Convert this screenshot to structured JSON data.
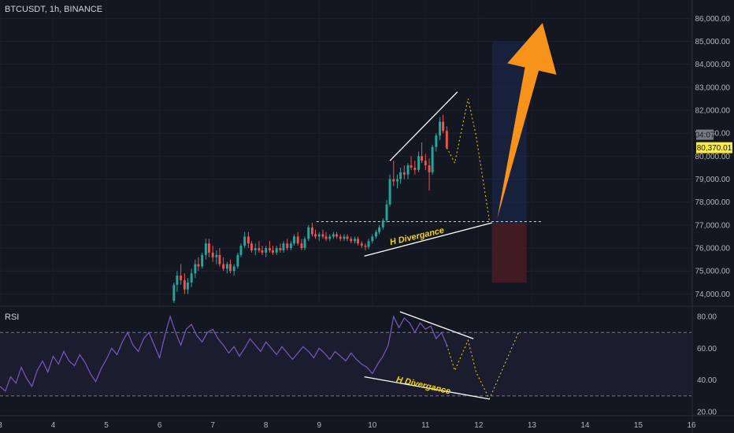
{
  "header": {
    "symbol_label": "BTCUSDT, 1h, BINANCE"
  },
  "rsi": {
    "label": "RSI",
    "upper_band": 70,
    "lower_band": 30
  },
  "price_tag": {
    "countdown": "04:07",
    "last_price": "80,370.01"
  },
  "colors": {
    "up": "#26a69a",
    "down": "#ef5350",
    "rsi_line": "#7e57c2",
    "arrow": "#f7931a",
    "annotation": "#f5d40f",
    "target_zone": "#1c2a52",
    "stop_zone": "#4a1c22"
  },
  "chart_data": [
    {
      "type": "candlestick",
      "panel": "price",
      "price_ticks": [
        "74,000.00",
        "75,000.00",
        "76,000.00",
        "77,000.00",
        "78,000.00",
        "79,000.00",
        "80,000.00",
        "81,000.00",
        "82,000.00",
        "83,000.00",
        "84,000.00",
        "85,000.00",
        "86,000.00"
      ],
      "ylim": [
        73500,
        86800
      ],
      "x_ticks": [
        "3",
        "4",
        "5",
        "6",
        "7",
        "8",
        "9",
        "10",
        "11",
        "12",
        "13",
        "14",
        "15",
        "16"
      ],
      "xlim": [
        3.0,
        16.0
      ],
      "candles": [
        [
          6.27,
          73700,
          74500,
          73600,
          74400
        ],
        [
          6.33,
          74400,
          75000,
          74100,
          74800
        ],
        [
          6.4,
          74800,
          75300,
          74400,
          74600
        ],
        [
          6.47,
          74600,
          74900,
          74000,
          74200
        ],
        [
          6.53,
          74200,
          74700,
          74000,
          74500
        ],
        [
          6.6,
          74500,
          75100,
          74300,
          74900
        ],
        [
          6.67,
          74900,
          75500,
          74700,
          75300
        ],
        [
          6.73,
          75300,
          75600,
          75000,
          75200
        ],
        [
          6.8,
          75200,
          75800,
          75100,
          75700
        ],
        [
          6.87,
          75700,
          76400,
          75500,
          76200
        ],
        [
          6.93,
          76200,
          76400,
          75600,
          75800
        ],
        [
          7.0,
          75800,
          76100,
          75400,
          75600
        ],
        [
          7.07,
          75600,
          75900,
          75300,
          75700
        ],
        [
          7.13,
          75700,
          76000,
          75200,
          75300
        ],
        [
          7.2,
          75300,
          75600,
          75000,
          75100
        ],
        [
          7.27,
          75100,
          75400,
          74900,
          75300
        ],
        [
          7.33,
          75300,
          75500,
          74900,
          75000
        ],
        [
          7.4,
          75000,
          75300,
          74800,
          75200
        ],
        [
          7.47,
          75200,
          75800,
          75100,
          75700
        ],
        [
          7.53,
          75700,
          76200,
          75600,
          76100
        ],
        [
          7.6,
          76100,
          76700,
          76000,
          76500
        ],
        [
          7.67,
          76500,
          76700,
          76000,
          76200
        ],
        [
          7.73,
          76200,
          76300,
          75800,
          75900
        ],
        [
          7.8,
          75900,
          76200,
          75700,
          76000
        ],
        [
          7.87,
          76000,
          76300,
          75800,
          75900
        ],
        [
          7.93,
          75900,
          76100,
          75700,
          75800
        ],
        [
          8.0,
          75800,
          76100,
          75600,
          76000
        ],
        [
          8.07,
          76000,
          76300,
          75800,
          75900
        ],
        [
          8.13,
          75900,
          76100,
          75700,
          75800
        ],
        [
          8.2,
          75800,
          76100,
          75700,
          76000
        ],
        [
          8.27,
          76000,
          76200,
          75800,
          75900
        ],
        [
          8.33,
          75900,
          76300,
          75800,
          76200
        ],
        [
          8.4,
          76200,
          76400,
          75900,
          76000
        ],
        [
          8.47,
          76000,
          76300,
          75900,
          76200
        ],
        [
          8.53,
          76200,
          76600,
          76100,
          76500
        ],
        [
          8.6,
          76500,
          76700,
          76100,
          76200
        ],
        [
          8.67,
          76200,
          76400,
          75900,
          76000
        ],
        [
          8.73,
          76000,
          76500,
          75900,
          76400
        ],
        [
          8.8,
          76400,
          77000,
          76300,
          76900
        ],
        [
          8.87,
          76900,
          77100,
          76500,
          76600
        ],
        [
          8.93,
          76600,
          76800,
          76400,
          76500
        ],
        [
          9.0,
          76500,
          76700,
          76300,
          76600
        ],
        [
          9.07,
          76600,
          76800,
          76400,
          76500
        ],
        [
          9.13,
          76500,
          76700,
          76300,
          76400
        ],
        [
          9.2,
          76400,
          76600,
          76300,
          76500
        ],
        [
          9.27,
          76500,
          76700,
          76400,
          76600
        ],
        [
          9.33,
          76600,
          76700,
          76400,
          76500
        ],
        [
          9.4,
          76500,
          76600,
          76300,
          76400
        ],
        [
          9.47,
          76400,
          76600,
          76300,
          76500
        ],
        [
          9.53,
          76500,
          76600,
          76300,
          76400
        ],
        [
          9.6,
          76400,
          76500,
          76200,
          76300
        ],
        [
          9.67,
          76300,
          76500,
          76200,
          76400
        ],
        [
          9.73,
          76400,
          76500,
          76100,
          76200
        ],
        [
          9.8,
          76200,
          76300,
          76000,
          76100
        ],
        [
          9.87,
          76100,
          76200,
          75900,
          76050
        ],
        [
          9.93,
          76050,
          76400,
          75950,
          76300
        ],
        [
          10.0,
          76300,
          76600,
          76200,
          76500
        ],
        [
          10.07,
          76500,
          76800,
          76400,
          76700
        ],
        [
          10.13,
          76700,
          77000,
          76600,
          76900
        ],
        [
          10.2,
          76900,
          77300,
          76800,
          77200
        ],
        [
          10.27,
          77200,
          78100,
          77100,
          77900
        ],
        [
          10.33,
          77900,
          79200,
          77800,
          79000
        ],
        [
          10.4,
          79000,
          79800,
          78700,
          78900
        ],
        [
          10.47,
          78900,
          79200,
          78600,
          79000
        ],
        [
          10.53,
          79000,
          79500,
          78800,
          79300
        ],
        [
          10.6,
          79300,
          79600,
          79000,
          79200
        ],
        [
          10.67,
          79200,
          79700,
          79000,
          79600
        ],
        [
          10.73,
          79600,
          80000,
          79400,
          79500
        ],
        [
          10.8,
          79500,
          79800,
          79200,
          79400
        ],
        [
          10.87,
          79400,
          80200,
          79300,
          80000
        ],
        [
          10.93,
          80000,
          80600,
          79700,
          79800
        ],
        [
          11.0,
          79800,
          80100,
          79400,
          79600
        ],
        [
          11.07,
          79600,
          79900,
          78500,
          79300
        ],
        [
          11.13,
          79300,
          80500,
          79200,
          80400
        ],
        [
          11.2,
          80400,
          81000,
          80200,
          80900
        ],
        [
          11.27,
          80900,
          81700,
          80700,
          81500
        ],
        [
          11.33,
          81500,
          81800,
          81000,
          81100
        ],
        [
          11.4,
          81100,
          81300,
          80300,
          80370
        ]
      ],
      "target_zone": {
        "x": [
          12.25,
          12.9
        ],
        "y": [
          77100,
          85000
        ]
      },
      "stop_zone": {
        "x": [
          12.25,
          12.9
        ],
        "y": [
          74500,
          77100
        ]
      },
      "horizontal_level": {
        "y": 77150,
        "x": [
          8.95,
          13.2
        ]
      },
      "projection_path": [
        [
          11.4,
          80370
        ],
        [
          11.55,
          79700
        ],
        [
          11.8,
          82500
        ],
        [
          11.95,
          80900
        ],
        [
          12.2,
          77200
        ]
      ],
      "trendlines": [
        {
          "points": [
            [
              10.33,
              79800
            ],
            [
              11.6,
              82800
            ]
          ]
        },
        {
          "points": [
            [
              9.85,
              75650
            ],
            [
              12.25,
              77100
            ]
          ]
        }
      ],
      "arrow": {
        "from": [
          12.35,
          77300
        ],
        "to": [
          13.2,
          85800
        ]
      },
      "annotations": [
        {
          "text": "H Divergance",
          "at": [
            10.85,
            76400
          ]
        }
      ]
    },
    {
      "type": "line",
      "panel": "rsi",
      "y_ticks": [
        "20.00",
        "40.00",
        "60.00",
        "80.00"
      ],
      "ylim": [
        18,
        85
      ],
      "series": [
        {
          "x": [
            3.0,
            3.1,
            3.2,
            3.3,
            3.4,
            3.5,
            3.6,
            3.7,
            3.8,
            3.9,
            4.0,
            4.1,
            4.2,
            4.3,
            4.4,
            4.5,
            4.6,
            4.7,
            4.8,
            4.9,
            5.0,
            5.1,
            5.2,
            5.3,
            5.4,
            5.5,
            5.6,
            5.7,
            5.8,
            5.9,
            6.0,
            6.1,
            6.2,
            6.3,
            6.4,
            6.5,
            6.6,
            6.7,
            6.8,
            6.9,
            7.0,
            7.1,
            7.2,
            7.3,
            7.4,
            7.5,
            7.6,
            7.7,
            7.8,
            7.9,
            8.0,
            8.1,
            8.2,
            8.3,
            8.4,
            8.5,
            8.6,
            8.7,
            8.8,
            8.9,
            9.0,
            9.1,
            9.2,
            9.3,
            9.4,
            9.5,
            9.6,
            9.7,
            9.8,
            9.9,
            10.0,
            10.1,
            10.2,
            10.3,
            10.4,
            10.5,
            10.6,
            10.7,
            10.8,
            10.9,
            11.0,
            11.1,
            11.2,
            11.3,
            11.4
          ],
          "values": [
            36,
            33,
            42,
            38,
            48,
            41,
            36,
            46,
            52,
            45,
            55,
            50,
            58,
            52,
            49,
            56,
            51,
            44,
            39,
            47,
            53,
            60,
            56,
            64,
            70,
            62,
            58,
            66,
            70,
            62,
            54,
            68,
            80,
            70,
            62,
            72,
            75,
            68,
            64,
            70,
            72,
            66,
            62,
            57,
            61,
            55,
            60,
            66,
            62,
            58,
            64,
            60,
            56,
            61,
            57,
            53,
            57,
            61,
            58,
            54,
            60,
            57,
            53,
            58,
            55,
            52,
            57,
            53,
            50,
            48,
            44,
            50,
            55,
            62,
            80,
            73,
            79,
            76,
            70,
            76,
            72,
            74,
            66,
            70,
            62
          ]
        }
      ],
      "projection_path": [
        [
          11.4,
          62
        ],
        [
          11.55,
          46
        ],
        [
          11.8,
          65
        ],
        [
          11.95,
          45
        ],
        [
          12.2,
          28
        ],
        [
          12.75,
          70
        ]
      ],
      "trendlines": [
        {
          "points": [
            [
              10.52,
              83
            ],
            [
              11.9,
              66
            ]
          ]
        },
        {
          "points": [
            [
              9.85,
              42
            ],
            [
              12.2,
              28
            ]
          ]
        }
      ],
      "annotations": [
        {
          "text": "H Divergance",
          "at": [
            10.95,
            35
          ]
        }
      ]
    }
  ]
}
